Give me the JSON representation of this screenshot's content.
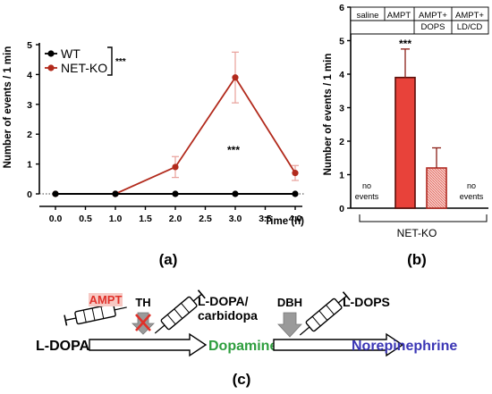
{
  "panels": {
    "a": "(a)",
    "b": "(b)",
    "c": "(c)"
  },
  "chart_data": [
    {
      "type": "line",
      "x": [
        0.0,
        1.0,
        2.0,
        3.0,
        4.0
      ],
      "x_ticks": [
        "0.0",
        "0.5",
        "1.0",
        "1.5",
        "2.0",
        "2.5",
        "3.0",
        "3.5",
        "4.0"
      ],
      "y_ticks": [
        "0",
        "1",
        "2",
        "3",
        "4",
        "5"
      ],
      "xlabel": "Time (h)",
      "ylabel": "Number of events / 1 min",
      "xlim": [
        0,
        4
      ],
      "ylim": [
        0,
        5
      ],
      "series": [
        {
          "name": "WT",
          "values": [
            0,
            0,
            0,
            0,
            0
          ],
          "color": "#000000"
        },
        {
          "name": "NET-KO",
          "values": [
            0,
            0,
            0.9,
            3.9,
            0.7
          ],
          "errors": [
            0,
            0,
            0.35,
            0.85,
            0.25
          ],
          "color": "#b22a1c"
        }
      ],
      "annotations": {
        "legend_sig": "***",
        "peak_sig": "***"
      },
      "legend": "top-left"
    },
    {
      "type": "bar",
      "categories": [
        "saline",
        "AMPT",
        "AMPT+ DOPS",
        "AMPT+ LD/CD"
      ],
      "values": [
        0,
        3.9,
        1.2,
        0
      ],
      "errors": [
        0,
        0.85,
        0.6,
        0
      ],
      "bar_text": [
        "no events",
        "",
        "",
        "no events"
      ],
      "colors": [
        "#ffffff",
        "#e8423a",
        "#f3b3ad",
        "#ffffff"
      ],
      "y_ticks": [
        "0",
        "1",
        "2",
        "3",
        "4",
        "5",
        "6"
      ],
      "ylabel": "Number of events / 1 min",
      "ylim": [
        0,
        6
      ],
      "group_label": "NET-KO",
      "annotations": {
        "sig": "***"
      }
    }
  ],
  "diagram": {
    "ampt": "AMPT",
    "th": "TH",
    "ldopa_carbidopa_1": "L-DOPA/",
    "ldopa_carbidopa_2": "carbidopa",
    "dbh": "DBH",
    "ldops": "L-DOPS",
    "ldopa": "L-DOPA",
    "dopamine": "Dopamine",
    "norepinephrine": "Norepinephrine",
    "dopamine_color": "#2e9e3e",
    "norepinephrine_color": "#3b36b5",
    "ampt_color": "#e0312a"
  }
}
